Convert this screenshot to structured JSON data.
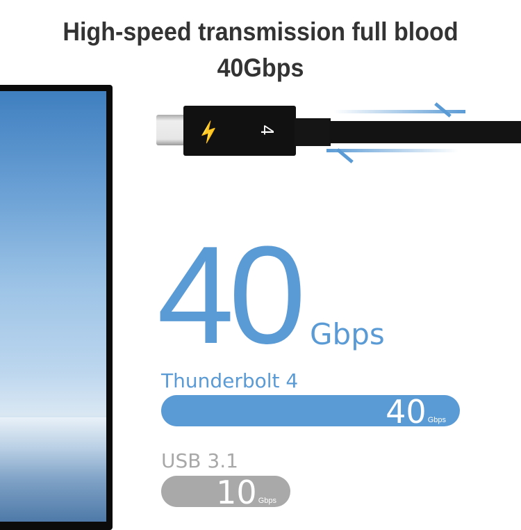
{
  "headline": "High-speed transmission full blood 40Gbps",
  "connector": {
    "logo_icon": "thunderbolt-icon",
    "number": "4"
  },
  "hero": {
    "value": "40",
    "unit": "Gbps"
  },
  "comparison": [
    {
      "label": "Thunderbolt 4",
      "value": "40",
      "unit": "Gbps",
      "color": "#5b9bd5"
    },
    {
      "label": "USB 3.1",
      "value": "10",
      "unit": "Gbps",
      "color": "#a9a9a9"
    }
  ]
}
